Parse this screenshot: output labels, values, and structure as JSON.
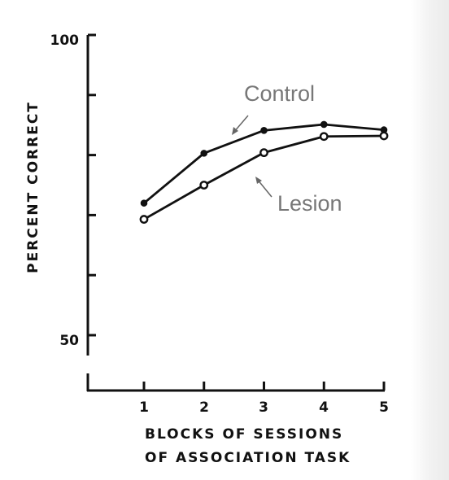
{
  "chart_data": {
    "type": "line",
    "title": "",
    "ylabel": "PERCENT CORRECT",
    "xlabel": [
      "BLOCKS OF SESSIONS",
      "OF ASSOCIATION TASK"
    ],
    "x": [
      1,
      2,
      3,
      4,
      5
    ],
    "x_tick_labels": [
      "1",
      "2",
      "3",
      "4",
      "5"
    ],
    "y_tick_labels": [
      "100",
      "50"
    ],
    "ylim": [
      50,
      100
    ],
    "y_ticks": [
      50,
      60,
      70,
      80,
      90,
      100
    ],
    "grid": false,
    "series": [
      {
        "name": "Control",
        "marker": "filled-circle",
        "values": [
          72.0,
          80.3,
          84.1,
          85.1,
          84.2
        ]
      },
      {
        "name": "Lesion",
        "marker": "open-circle",
        "values": [
          69.3,
          75.0,
          80.4,
          83.1,
          83.2
        ]
      }
    ],
    "annotations": [
      "Control",
      "Lesion"
    ],
    "colors": {
      "lines": "#111111",
      "annotation_text": "#777777",
      "annotation_arrow": "#666666"
    }
  }
}
